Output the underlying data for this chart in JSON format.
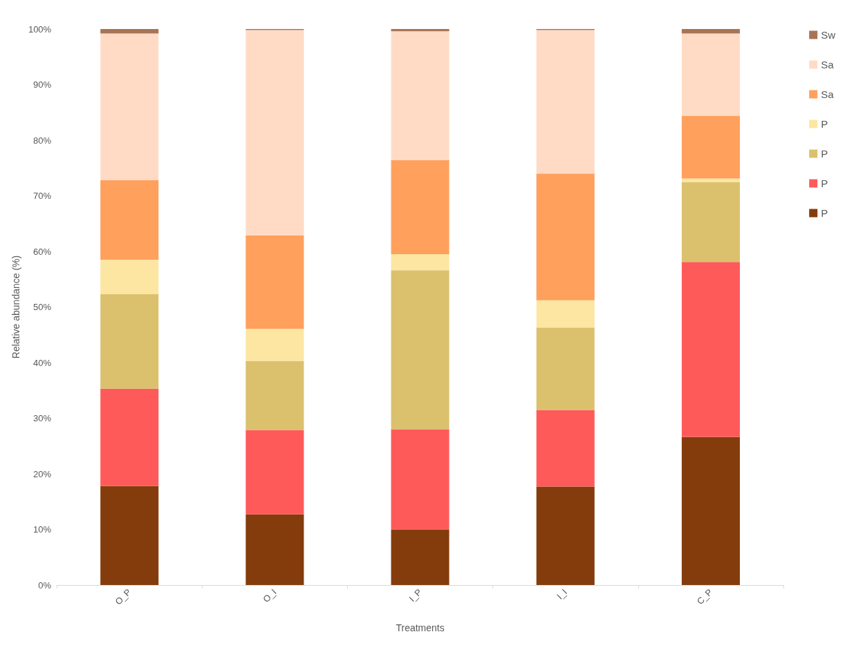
{
  "chart_data": {
    "type": "bar",
    "stacked": true,
    "xlabel": "Treatments",
    "ylabel": "Relative abundance (%)",
    "categories": [
      "O_P",
      "O_I",
      "I_P",
      "I_I",
      "C_P"
    ],
    "series": [
      {
        "name": "P",
        "color": "#843c0c",
        "values": [
          17.8,
          12.7,
          10.0,
          17.7,
          26.6
        ]
      },
      {
        "name": "P",
        "color": "#ff5a5a",
        "values": [
          17.5,
          15.2,
          18.0,
          13.8,
          31.5
        ]
      },
      {
        "name": "P",
        "color": "#dbc16d",
        "values": [
          17.0,
          12.4,
          28.6,
          14.8,
          14.4
        ]
      },
      {
        "name": "P",
        "color": "#fde6a2",
        "values": [
          6.2,
          5.8,
          2.9,
          4.9,
          0.6
        ]
      },
      {
        "name": "Sa",
        "color": "#ffa05d",
        "values": [
          14.3,
          16.8,
          16.9,
          22.8,
          11.3
        ]
      },
      {
        "name": "Sa",
        "color": "#ffdbc5",
        "values": [
          26.4,
          36.9,
          23.2,
          25.8,
          14.8
        ]
      },
      {
        "name": "Sw",
        "color": "#a87456",
        "values": [
          0.8,
          0.2,
          0.4,
          0.2,
          0.8
        ]
      }
    ],
    "ylim": [
      0,
      100
    ],
    "yticks": [
      {
        "value": 0,
        "label": "0%"
      },
      {
        "value": 10,
        "label": "10%"
      },
      {
        "value": 20,
        "label": "20%"
      },
      {
        "value": 30,
        "label": "30%"
      },
      {
        "value": 40,
        "label": "40%"
      },
      {
        "value": 50,
        "label": "50%"
      },
      {
        "value": 60,
        "label": "60%"
      },
      {
        "value": 70,
        "label": "70%"
      },
      {
        "value": 80,
        "label": "80%"
      },
      {
        "value": 90,
        "label": "90%"
      },
      {
        "value": 100,
        "label": "100%"
      }
    ],
    "grid": false,
    "legend": "right"
  }
}
